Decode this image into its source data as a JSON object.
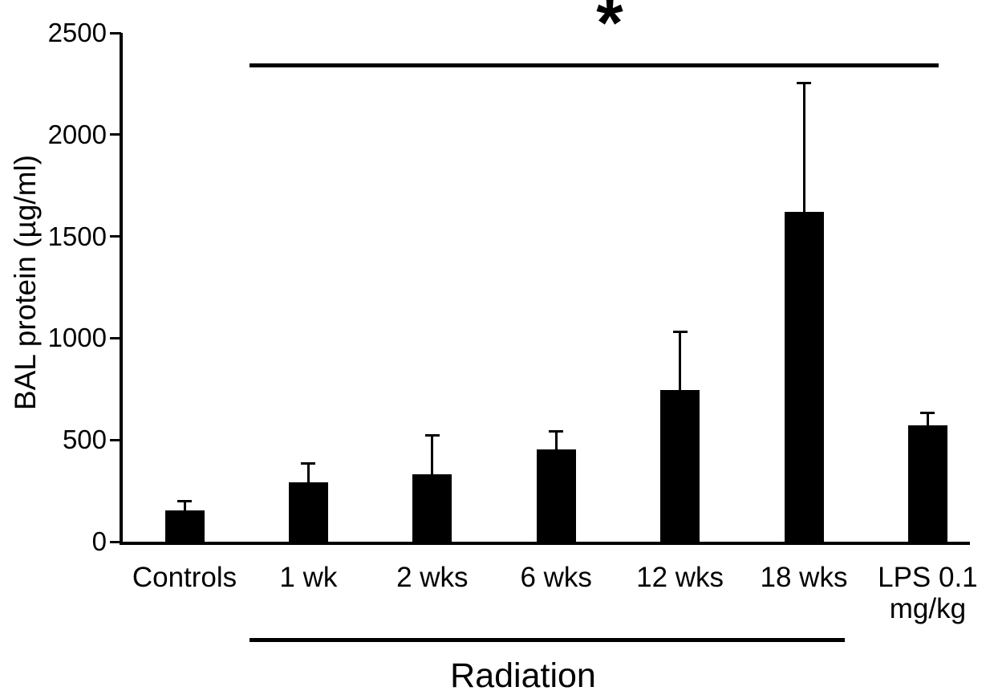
{
  "chart_data": {
    "type": "bar",
    "title": "",
    "xlabel": "",
    "ylabel": "BAL protein (µg/ml)",
    "ylim": [
      0,
      2500
    ],
    "yticks": [
      0,
      500,
      1000,
      1500,
      2000,
      2500
    ],
    "grid": "off",
    "legend": "none",
    "bar_color": "#000000",
    "categories": [
      "Controls",
      "1 wk",
      "2 wks",
      "6 wks",
      "12 wks",
      "18 wks",
      "LPS 0.1\nmg/kg"
    ],
    "values": [
      155,
      290,
      330,
      455,
      745,
      1620,
      570
    ],
    "errors_upper": [
      45,
      95,
      195,
      90,
      290,
      635,
      65
    ],
    "annotations": {
      "significance": {
        "symbol": "*",
        "span": [
          "1 wk",
          "LPS 0.1 mg/kg"
        ]
      },
      "group": {
        "label": "Radiation",
        "span": [
          "1 wk",
          "18 wks"
        ]
      }
    }
  }
}
